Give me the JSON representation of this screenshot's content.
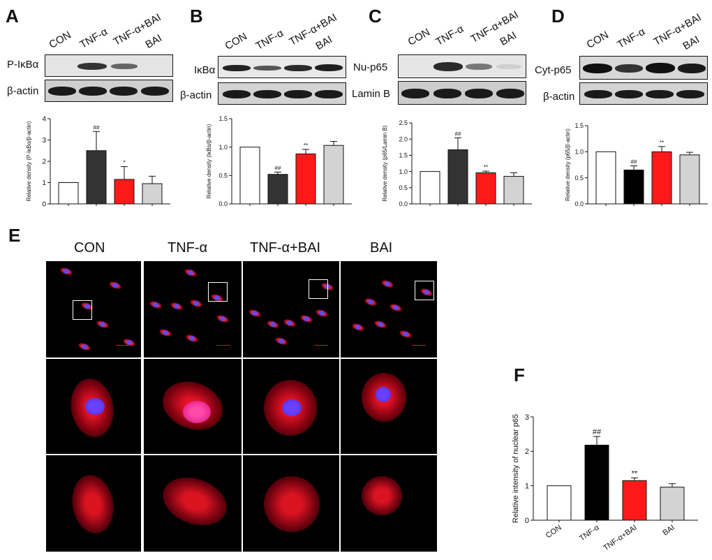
{
  "panels": {
    "A": {
      "letter": "A",
      "lanes": [
        "CON",
        "TNF-α",
        "TNF-α+BAI",
        "BAI"
      ],
      "rows": [
        "P-IκBα",
        "β-actin"
      ],
      "chart": {
        "type": "bar",
        "categories": [
          "CON",
          "TNF-α",
          "TNF-α+BAI",
          "BAI"
        ],
        "values": [
          1.0,
          2.5,
          1.15,
          0.95
        ],
        "errors": [
          0,
          0.9,
          0.6,
          0.35
        ],
        "ylabel": "Relative density (P-IκBα/β-actin)",
        "ylim": [
          0,
          4
        ],
        "yticks": [
          "0",
          "1",
          "2",
          "3",
          "4"
        ],
        "annotations": [
          "",
          "##",
          "*",
          ""
        ],
        "colors": [
          "#ffffff",
          "#333333",
          "#ff1a1a",
          "#d3d3d3"
        ]
      }
    },
    "B": {
      "letter": "B",
      "lanes": [
        "CON",
        "TNF-α",
        "TNF-α+BAI",
        "BAI"
      ],
      "rows": [
        "IκBα",
        "β-actin"
      ],
      "chart": {
        "type": "bar",
        "categories": [
          "CON",
          "TNF-α",
          "TNF-α+BAI",
          "BAI"
        ],
        "values": [
          1.0,
          0.52,
          0.88,
          1.03
        ],
        "errors": [
          0,
          0.04,
          0.08,
          0.07
        ],
        "ylabel": "Relative density (IκBα/β-actin)",
        "ylim": [
          0,
          1.5
        ],
        "yticks": [
          "0.0",
          "0.5",
          "1.0",
          "1.5"
        ],
        "annotations": [
          "",
          "##",
          "**",
          ""
        ],
        "colors": [
          "#ffffff",
          "#333333",
          "#ff1a1a",
          "#d3d3d3"
        ]
      }
    },
    "C": {
      "letter": "C",
      "lanes": [
        "CON",
        "TNF-α",
        "TNF-α+BAI",
        "BAI"
      ],
      "rows": [
        "Nu-p65",
        "Lamin B"
      ],
      "chart": {
        "type": "bar",
        "categories": [
          "CON",
          "TNF-α",
          "TNF-α+BAI",
          "BAI"
        ],
        "values": [
          1.0,
          1.67,
          0.96,
          0.85
        ],
        "errors": [
          0,
          0.37,
          0.05,
          0.11
        ],
        "ylabel": "Relative density (p65/Lamin B)",
        "ylim": [
          0,
          2.5
        ],
        "yticks": [
          "0.0",
          "0.5",
          "1.0",
          "1.5",
          "2.0",
          "2.5"
        ],
        "annotations": [
          "",
          "##",
          "**",
          ""
        ],
        "colors": [
          "#ffffff",
          "#333333",
          "#ff1a1a",
          "#d3d3d3"
        ]
      }
    },
    "D": {
      "letter": "D",
      "lanes": [
        "CON",
        "TNF-α",
        "TNF-α+BAI",
        "BAI"
      ],
      "rows": [
        "Cyt-p65",
        "β-actin"
      ],
      "chart": {
        "type": "bar",
        "categories": [
          "CON",
          "TNF-α",
          "TNF-α+BAI",
          "BAI"
        ],
        "values": [
          1.0,
          0.65,
          1.0,
          0.94
        ],
        "errors": [
          0,
          0.08,
          0.1,
          0.05
        ],
        "ylabel": "Relative density (p65/β-actin)",
        "ylim": [
          0,
          1.5
        ],
        "yticks": [
          "0.0",
          "0.5",
          "1.0",
          "1.5"
        ],
        "annotations": [
          "",
          "##",
          "**",
          ""
        ],
        "colors": [
          "#ffffff",
          "#000000",
          "#ff1a1a",
          "#d3d3d3"
        ]
      }
    },
    "E": {
      "letter": "E",
      "columns": [
        "CON",
        "TNF-α",
        "TNF-α+BAI",
        "BAI"
      ]
    },
    "F": {
      "letter": "F",
      "chart": {
        "type": "bar",
        "categories": [
          "CON",
          "TNF-α",
          "TNF-α+BAI",
          "BAI"
        ],
        "values": [
          1.0,
          2.18,
          1.15,
          0.96
        ],
        "errors": [
          0,
          0.25,
          0.08,
          0.1
        ],
        "ylabel": "Relative intensity of nuclear p65",
        "ylim": [
          0,
          3
        ],
        "yticks": [
          "0",
          "1",
          "2",
          "3"
        ],
        "annotations": [
          "",
          "##",
          "**",
          ""
        ],
        "colors": [
          "#ffffff",
          "#000000",
          "#ff1a1a",
          "#d3d3d3"
        ]
      }
    }
  },
  "chart_data": [
    {
      "type": "bar",
      "panel": "A",
      "categories": [
        "CON",
        "TNF-α",
        "TNF-α+BAI",
        "BAI"
      ],
      "values": [
        1.0,
        2.5,
        1.15,
        0.95
      ],
      "errors": [
        0,
        0.9,
        0.6,
        0.35
      ],
      "ylabel": "Relative density (P-IκBα/β-actin)",
      "ylim": [
        0,
        4
      ]
    },
    {
      "type": "bar",
      "panel": "B",
      "categories": [
        "CON",
        "TNF-α",
        "TNF-α+BAI",
        "BAI"
      ],
      "values": [
        1.0,
        0.52,
        0.88,
        1.03
      ],
      "errors": [
        0,
        0.04,
        0.08,
        0.07
      ],
      "ylabel": "Relative density (IκBα/β-actin)",
      "ylim": [
        0,
        1.5
      ]
    },
    {
      "type": "bar",
      "panel": "C",
      "categories": [
        "CON",
        "TNF-α",
        "TNF-α+BAI",
        "BAI"
      ],
      "values": [
        1.0,
        1.67,
        0.96,
        0.85
      ],
      "errors": [
        0,
        0.37,
        0.05,
        0.11
      ],
      "ylabel": "Relative density (p65/Lamin B)",
      "ylim": [
        0,
        2.5
      ]
    },
    {
      "type": "bar",
      "panel": "D",
      "categories": [
        "CON",
        "TNF-α",
        "TNF-α+BAI",
        "BAI"
      ],
      "values": [
        1.0,
        0.65,
        1.0,
        0.94
      ],
      "errors": [
        0,
        0.08,
        0.1,
        0.05
      ],
      "ylabel": "Relative density (p65/β-actin)",
      "ylim": [
        0,
        1.5
      ]
    },
    {
      "type": "bar",
      "panel": "F",
      "categories": [
        "CON",
        "TNF-α",
        "TNF-α+BAI",
        "BAI"
      ],
      "values": [
        1.0,
        2.18,
        1.15,
        0.96
      ],
      "errors": [
        0,
        0.25,
        0.08,
        0.1
      ],
      "ylabel": "Relative intensity of nuclear p65",
      "ylim": [
        0,
        3
      ]
    }
  ]
}
